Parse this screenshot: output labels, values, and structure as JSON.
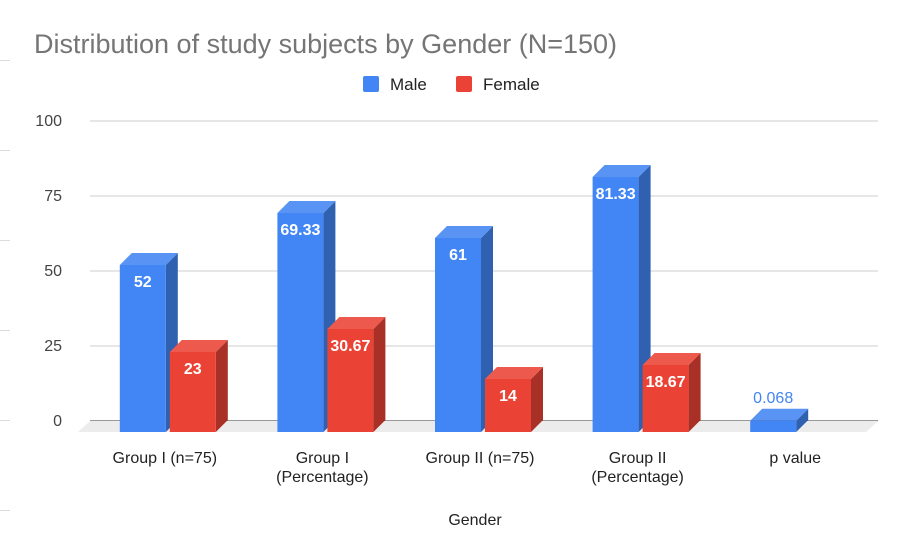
{
  "chart_data": {
    "type": "bar",
    "style": "3d-clustered-column",
    "title": "Distribution of study subjects by Gender (N=150)",
    "xlabel": "Gender",
    "ylabel": "",
    "ylim": [
      0,
      100
    ],
    "yticks": [
      "0",
      "25",
      "50",
      "75",
      "100"
    ],
    "grid": true,
    "legend_position": "top",
    "categories": [
      [
        "Group I (n=75)"
      ],
      [
        "Group I",
        "(Percentage)"
      ],
      [
        "Group II (n=75)"
      ],
      [
        "Group II",
        "(Percentage)"
      ],
      [
        "p value"
      ]
    ],
    "series": [
      {
        "name": "Male",
        "color": "#4285f4",
        "values": [
          52,
          69.33,
          61,
          81.33,
          0.068
        ],
        "labels": [
          "52",
          "69.33",
          "61",
          "81.33",
          "0.068"
        ]
      },
      {
        "name": "Female",
        "color": "#ea4335",
        "values": [
          23,
          30.67,
          14,
          18.67,
          null
        ],
        "labels": [
          "23",
          "30.67",
          "14",
          "18.67",
          ""
        ]
      }
    ]
  }
}
